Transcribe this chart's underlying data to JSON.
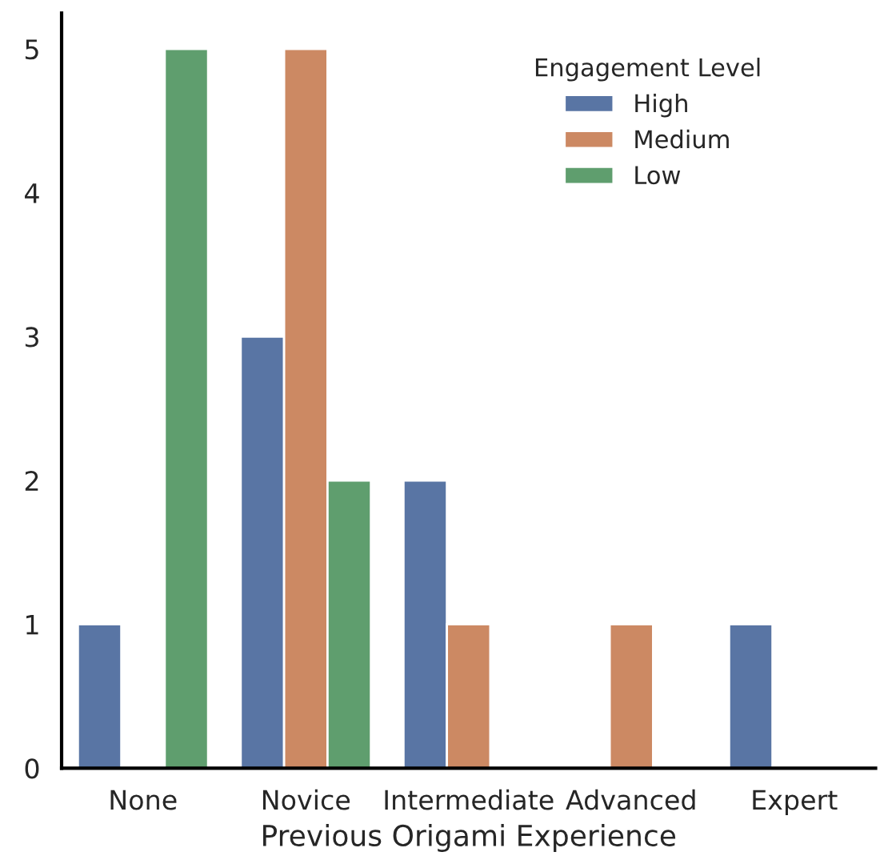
{
  "chart_data": {
    "type": "bar",
    "xlabel": "Previous Origami Experience",
    "legend_title": "Engagement Level",
    "categories": [
      "None",
      "Novice",
      "Intermediate",
      "Advanced",
      "Expert"
    ],
    "series": [
      {
        "name": "High",
        "color": "#5975a4",
        "values": [
          1,
          3,
          2,
          null,
          1
        ]
      },
      {
        "name": "Medium",
        "color": "#cc8963",
        "values": [
          null,
          5,
          1,
          1,
          null
        ]
      },
      {
        "name": "Low",
        "color": "#5f9e6e",
        "values": [
          5,
          2,
          null,
          null,
          null
        ]
      }
    ],
    "ylim": [
      0,
      5.25
    ],
    "yticks": [
      0,
      1,
      2,
      3,
      4,
      5
    ],
    "grid": false,
    "legend": "top right"
  }
}
